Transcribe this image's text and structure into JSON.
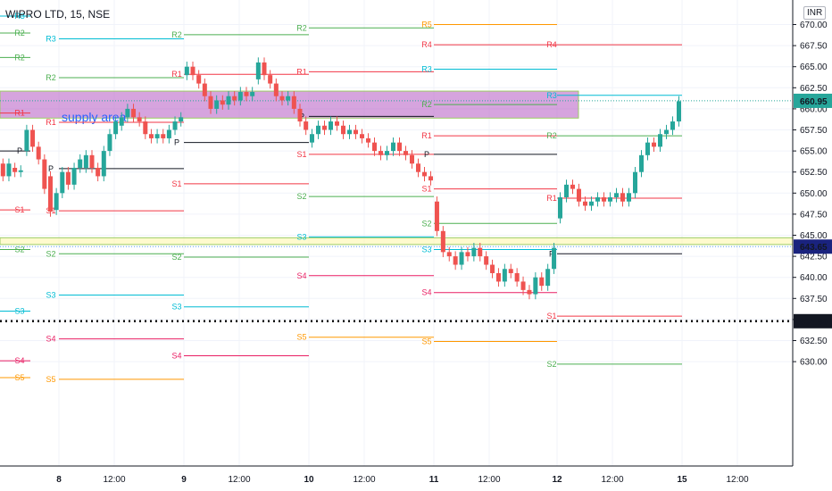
{
  "header": {
    "title": "WIPRO LTD, 15, NSE",
    "currency": "INR"
  },
  "colors": {
    "up": "#26a69a",
    "down": "#ef5350",
    "R": "#f23645",
    "S": "#f23645",
    "R2": "#4caf50",
    "S2": "#4caf50",
    "R3": "#00bcd4",
    "S3": "#00bcd4",
    "R4": "#f23645",
    "S4": "#e91e63",
    "R5": "#ff9800",
    "S5": "#ff9800",
    "P": "#131722",
    "supply": "#ba68c8",
    "support": "#fff59d",
    "lastPriceLabel": "#26a69a",
    "hlineLabel": "#131722",
    "s3Label": "#1a237e"
  },
  "chart_data": {
    "type": "candlestick",
    "price_axis": {
      "ticks": [
        "670.00",
        "667.50",
        "665.00",
        "662.50",
        "660.00",
        "657.50",
        "655.00",
        "652.50",
        "650.00",
        "647.50",
        "645.00",
        "642.50",
        "640.00",
        "637.50",
        "635.00",
        "632.50",
        "630.00"
      ],
      "range": [
        627.5,
        671
      ]
    },
    "time_axis": {
      "labels": [
        "8",
        "12:00",
        "9",
        "12:00",
        "10",
        "12:00",
        "11",
        "12:00",
        "12",
        "12:00",
        "15",
        "12:00"
      ]
    },
    "price_labels": {
      "last": "660.95",
      "level_a": "643.65",
      "level_b": "634.80"
    },
    "zones": [
      {
        "name": "supply area",
        "label": "supply  area",
        "from": 658.9,
        "to": 662.1
      },
      {
        "name": "support",
        "from": 643.9,
        "to": 644.7
      }
    ],
    "horizontal_lines": [
      {
        "price": 643.65,
        "style": "dashed"
      },
      {
        "price": 634.8,
        "style": "dotted"
      }
    ],
    "pivot_levels": [
      {
        "session": "prev",
        "levels": [
          {
            "name": "R3",
            "price": 671.0
          },
          {
            "name": "R2",
            "price": 669.0
          },
          {
            "name": "R2",
            "price": 666.1
          },
          {
            "name": "R1",
            "price": 659.5
          },
          {
            "name": "P",
            "price": 655.0
          },
          {
            "name": "S1",
            "price": 648.0
          },
          {
            "name": "S2",
            "price": 643.3
          },
          {
            "name": "S3",
            "price": 636.0
          },
          {
            "name": "S4",
            "price": 630.1
          },
          {
            "name": "S5",
            "price": 628.1
          }
        ]
      },
      {
        "session": "8",
        "levels": [
          {
            "name": "R3",
            "price": 668.3
          },
          {
            "name": "R2",
            "price": 663.7
          },
          {
            "name": "R1",
            "price": 658.4
          },
          {
            "name": "P",
            "price": 652.9
          },
          {
            "name": "S1",
            "price": 647.9
          },
          {
            "name": "S2",
            "price": 642.8
          },
          {
            "name": "S3",
            "price": 637.9
          },
          {
            "name": "S4",
            "price": 632.7
          },
          {
            "name": "S5",
            "price": 627.9
          }
        ]
      },
      {
        "session": "9",
        "levels": [
          {
            "name": "R2",
            "price": 668.8
          },
          {
            "name": "R1",
            "price": 664.1
          },
          {
            "name": "P",
            "price": 656.0
          },
          {
            "name": "S1",
            "price": 651.1
          },
          {
            "name": "S2",
            "price": 642.4
          },
          {
            "name": "S3",
            "price": 636.5
          },
          {
            "name": "S4",
            "price": 630.7
          }
        ]
      },
      {
        "session": "10",
        "levels": [
          {
            "name": "R2",
            "price": 669.6
          },
          {
            "name": "R1",
            "price": 664.4
          },
          {
            "name": "P",
            "price": 659.1
          },
          {
            "name": "S1",
            "price": 654.6
          },
          {
            "name": "S2",
            "price": 649.6
          },
          {
            "name": "S3",
            "price": 644.8
          },
          {
            "name": "S4",
            "price": 640.2
          },
          {
            "name": "S5",
            "price": 632.9
          }
        ]
      },
      {
        "session": "11",
        "levels": [
          {
            "name": "R5",
            "price": 670.0
          },
          {
            "name": "R4",
            "price": 667.6
          },
          {
            "name": "R3",
            "price": 664.7
          },
          {
            "name": "R2",
            "price": 660.5
          },
          {
            "name": "R1",
            "price": 656.8
          },
          {
            "name": "P",
            "price": 654.6
          },
          {
            "name": "S1",
            "price": 650.5
          },
          {
            "name": "S2",
            "price": 646.4
          },
          {
            "name": "S3",
            "price": 643.3
          },
          {
            "name": "S4",
            "price": 638.2
          },
          {
            "name": "S5",
            "price": 632.4
          }
        ]
      },
      {
        "session": "12",
        "levels": [
          {
            "name": "R4",
            "price": 667.6
          },
          {
            "name": "R3",
            "price": 661.6
          },
          {
            "name": "R2",
            "price": 656.8
          },
          {
            "name": "R1",
            "price": 649.4
          },
          {
            "name": "P",
            "price": 642.8
          },
          {
            "name": "S1",
            "price": 635.4
          },
          {
            "name": "S2",
            "price": 629.7
          }
        ]
      }
    ],
    "candles": [
      [
        653.5,
        652.0
      ],
      [
        652.0,
        653.5
      ],
      [
        653.0,
        652.5
      ],
      [
        652.5,
        652.7
      ],
      [
        655.0,
        657.5
      ],
      [
        657.5,
        655.5
      ],
      [
        655.5,
        654.0
      ],
      [
        654.0,
        650.5
      ],
      [
        652.0,
        647.8
      ],
      [
        648.0,
        650.0
      ],
      [
        650.0,
        652.5
      ],
      [
        652.5,
        651.0
      ],
      [
        651.0,
        653.0
      ],
      [
        653.0,
        654.0
      ],
      [
        653.0,
        654.5
      ],
      [
        654.5,
        653.0
      ],
      [
        653.0,
        652.0
      ],
      [
        652.0,
        655.0
      ],
      [
        655.0,
        657.0
      ],
      [
        657.0,
        658.5
      ],
      [
        658.0,
        659.0
      ],
      [
        659.0,
        660.0
      ],
      [
        660.0,
        659.0
      ],
      [
        659.0,
        658.5
      ],
      [
        658.5,
        657.0
      ],
      [
        657.0,
        656.5
      ],
      [
        656.5,
        657.0
      ],
      [
        657.0,
        656.5
      ],
      [
        656.5,
        657.5
      ],
      [
        657.5,
        658.5
      ],
      [
        658.5,
        659.0
      ],
      [
        664.0,
        665.0
      ],
      [
        665.0,
        664.0
      ],
      [
        664.0,
        663.0
      ],
      [
        663.0,
        661.5
      ],
      [
        661.5,
        660.0
      ],
      [
        660.0,
        661.0
      ],
      [
        661.0,
        660.5
      ],
      [
        660.5,
        661.5
      ],
      [
        661.5,
        661.0
      ],
      [
        661.0,
        662.0
      ],
      [
        662.0,
        661.5
      ],
      [
        661.5,
        662.0
      ],
      [
        663.5,
        665.5
      ],
      [
        665.5,
        664.0
      ],
      [
        664.0,
        663.0
      ],
      [
        663.0,
        661.5
      ],
      [
        661.5,
        661.0
      ],
      [
        661.0,
        661.5
      ],
      [
        661.5,
        660.0
      ],
      [
        660.0,
        658.5
      ],
      [
        658.5,
        657.5
      ],
      [
        656.0,
        657.0
      ],
      [
        657.0,
        658.0
      ],
      [
        658.0,
        657.5
      ],
      [
        657.5,
        658.5
      ],
      [
        658.5,
        658.0
      ],
      [
        658.0,
        657.0
      ],
      [
        657.0,
        657.5
      ],
      [
        657.5,
        657.0
      ],
      [
        657.0,
        656.5
      ],
      [
        656.5,
        656.0
      ],
      [
        656.0,
        655.0
      ],
      [
        655.0,
        654.5
      ],
      [
        654.5,
        655.0
      ],
      [
        655.0,
        656.0
      ],
      [
        656.0,
        655.0
      ],
      [
        655.0,
        654.5
      ],
      [
        654.5,
        653.5
      ],
      [
        653.5,
        652.5
      ],
      [
        652.5,
        652.0
      ],
      [
        652.0,
        651.5
      ],
      [
        649.0,
        645.5
      ],
      [
        645.5,
        643.0
      ],
      [
        643.0,
        642.5
      ],
      [
        642.5,
        641.5
      ],
      [
        641.5,
        643.0
      ],
      [
        643.0,
        642.5
      ],
      [
        642.5,
        643.5
      ],
      [
        643.5,
        642.5
      ],
      [
        642.5,
        641.5
      ],
      [
        641.5,
        640.5
      ],
      [
        640.5,
        639.5
      ],
      [
        639.5,
        641.0
      ],
      [
        641.0,
        640.5
      ],
      [
        640.5,
        639.5
      ],
      [
        639.5,
        638.5
      ],
      [
        638.5,
        638.0
      ],
      [
        638.0,
        640.0
      ],
      [
        640.0,
        639.0
      ],
      [
        639.0,
        641.0
      ],
      [
        641.0,
        643.5
      ],
      [
        647.0,
        649.5
      ],
      [
        649.5,
        651.0
      ],
      [
        651.0,
        650.5
      ],
      [
        650.5,
        649.0
      ],
      [
        649.0,
        648.5
      ],
      [
        648.5,
        649.0
      ],
      [
        649.0,
        649.5
      ],
      [
        649.5,
        649.0
      ],
      [
        649.0,
        649.5
      ],
      [
        649.5,
        650.0
      ],
      [
        650.0,
        649.0
      ],
      [
        649.0,
        650.0
      ],
      [
        650.0,
        652.5
      ],
      [
        652.5,
        654.5
      ],
      [
        654.5,
        656.0
      ],
      [
        656.0,
        655.5
      ],
      [
        655.5,
        657.0
      ],
      [
        657.0,
        657.5
      ],
      [
        657.5,
        658.5
      ],
      [
        658.5,
        660.9
      ]
    ]
  }
}
